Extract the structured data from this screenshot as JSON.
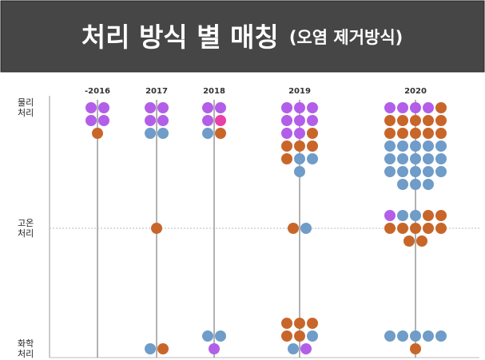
{
  "chart_data": {
    "type": "dot",
    "title": "처리 방식 별 매칭",
    "subtitle": "(오염 제거방식)",
    "categories": [
      "-2016",
      "2017",
      "2018",
      "2019",
      "2020"
    ],
    "rows": [
      {
        "label": [
          "물리",
          "처리"
        ],
        "cells": [
          [
            {
              "color": "#b35ee8",
              "count": 4
            },
            {
              "color": "#c8662a",
              "count": 1
            }
          ],
          [
            {
              "color": "#b35ee8",
              "count": 4
            },
            {
              "color": "#6f9cc8",
              "count": 2
            }
          ],
          [
            {
              "color": "#b35ee8",
              "count": 3
            },
            {
              "color": "#e840a8",
              "count": 1
            },
            {
              "color": "#6f9cc8",
              "count": 1
            },
            {
              "color": "#c8662a",
              "count": 1
            }
          ],
          [
            {
              "color": "#b35ee8",
              "count": 8
            },
            {
              "color": "#c8662a",
              "count": 5
            },
            {
              "color": "#6f9cc8",
              "count": 3
            }
          ],
          [
            {
              "color": "#b35ee8",
              "count": 4
            },
            {
              "color": "#c8662a",
              "count": 11
            },
            {
              "color": "#6f9cc8",
              "count": 18
            }
          ]
        ]
      },
      {
        "label": [
          "고온",
          "처리"
        ],
        "cells": [
          [],
          [
            {
              "color": "#c8662a",
              "count": 1
            }
          ],
          [],
          [
            {
              "color": "#c8662a",
              "count": 1
            },
            {
              "color": "#6f9cc8",
              "count": 1
            }
          ],
          [
            {
              "color": "#b35ee8",
              "count": 1
            },
            {
              "color": "#6f9cc8",
              "count": 2
            },
            {
              "color": "#c8662a",
              "count": 9
            }
          ]
        ]
      },
      {
        "label": [
          "화학",
          "처리"
        ],
        "cells": [
          [],
          [
            {
              "color": "#6f9cc8",
              "count": 1
            },
            {
              "color": "#c8662a",
              "count": 1
            }
          ],
          [
            {
              "color": "#6f9cc8",
              "count": 2
            },
            {
              "color": "#b35ee8",
              "count": 1
            }
          ],
          [
            {
              "color": "#c8662a",
              "count": 5
            },
            {
              "color": "#6f9cc8",
              "count": 2
            },
            {
              "color": "#b35ee8",
              "count": 1
            }
          ],
          [
            {
              "color": "#6f9cc8",
              "count": 5
            },
            {
              "color": "#c8662a",
              "count": 1
            }
          ]
        ]
      }
    ]
  }
}
